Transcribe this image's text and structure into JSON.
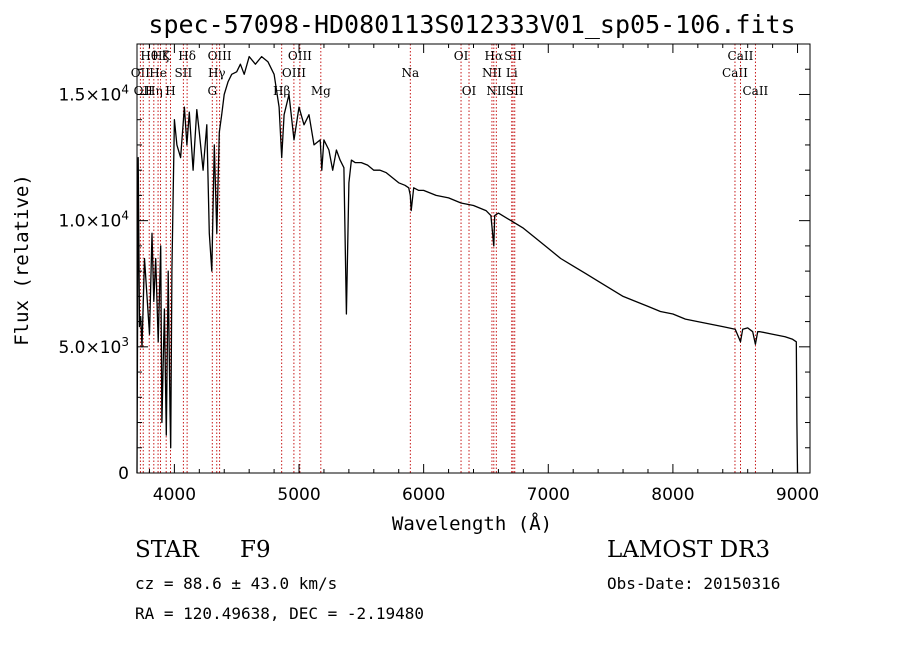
{
  "chart_data": {
    "type": "line",
    "title": "spec-57098-HD080113S012333V01_sp05-106.fits",
    "xlabel": "Wavelength (Å)",
    "ylabel": "Flux (relative)",
    "xlim": [
      3700,
      9100
    ],
    "ylim": [
      0,
      17000
    ],
    "x_ticks": [
      4000,
      5000,
      6000,
      7000,
      8000,
      9000
    ],
    "x_tick_labels": [
      "4000",
      "5000",
      "6000",
      "7000",
      "8000",
      "9000"
    ],
    "y_ticks": [
      0,
      5000,
      10000,
      15000
    ],
    "y_tick_labels": [
      "0",
      "5.0×10",
      "1.0×10",
      "1.5×10"
    ],
    "y_tick_exponents": [
      "",
      "3",
      "4",
      "4"
    ],
    "series": [
      {
        "name": "flux",
        "x": [
          3700,
          3710,
          3720,
          3730,
          3740,
          3760,
          3780,
          3800,
          3820,
          3835,
          3850,
          3870,
          3890,
          3900,
          3920,
          3935,
          3950,
          3965,
          3970,
          3980,
          4000,
          4020,
          4050,
          4080,
          4100,
          4120,
          4150,
          4180,
          4200,
          4230,
          4260,
          4280,
          4300,
          4320,
          4340,
          4360,
          4380,
          4400,
          4430,
          4460,
          4500,
          4530,
          4560,
          4600,
          4650,
          4700,
          4750,
          4800,
          4840,
          4861,
          4880,
          4920,
          4960,
          5000,
          5040,
          5080,
          5120,
          5170,
          5183,
          5200,
          5240,
          5270,
          5300,
          5330,
          5360,
          5380,
          5400,
          5420,
          5450,
          5500,
          5550,
          5600,
          5650,
          5700,
          5750,
          5800,
          5850,
          5880,
          5893,
          5900,
          5920,
          5960,
          6000,
          6100,
          6200,
          6300,
          6400,
          6500,
          6540,
          6563,
          6570,
          6600,
          6700,
          6800,
          6900,
          7000,
          7100,
          7200,
          7300,
          7400,
          7500,
          7600,
          7700,
          7800,
          7900,
          8000,
          8100,
          8200,
          8300,
          8400,
          8500,
          8542,
          8560,
          8600,
          8640,
          8662,
          8680,
          8700,
          8800,
          8900,
          8960,
          8990,
          8995,
          9000
        ],
        "values": [
          0,
          12500,
          5800,
          6200,
          5000,
          8500,
          7000,
          5500,
          9500,
          6800,
          8500,
          5200,
          9000,
          2000,
          6500,
          1500,
          8000,
          2500,
          1000,
          8000,
          14000,
          13000,
          12500,
          14500,
          13000,
          14300,
          12000,
          14400,
          13500,
          12000,
          13800,
          9500,
          8000,
          13000,
          9500,
          13500,
          14200,
          15000,
          15500,
          15800,
          15900,
          16200,
          15800,
          16500,
          16200,
          16500,
          16300,
          15800,
          14500,
          12500,
          14200,
          15000,
          13200,
          14500,
          13800,
          14200,
          13000,
          13200,
          12000,
          13200,
          12800,
          12000,
          12800,
          12400,
          12100,
          6300,
          11500,
          12400,
          12300,
          12300,
          12200,
          12000,
          12000,
          11900,
          11700,
          11500,
          11400,
          11300,
          11000,
          10400,
          11300,
          11200,
          11200,
          11000,
          10900,
          10700,
          10600,
          10400,
          10200,
          9000,
          10200,
          10300,
          10000,
          9700,
          9300,
          8900,
          8500,
          8200,
          7900,
          7600,
          7300,
          7000,
          6800,
          6600,
          6400,
          6300,
          6100,
          6000,
          5900,
          5800,
          5700,
          5200,
          5700,
          5750,
          5600,
          5100,
          5600,
          5600,
          5500,
          5400,
          5300,
          5200,
          2000,
          0
        ]
      }
    ],
    "spectral_lines": [
      {
        "wl": 3727,
        "label": "OII",
        "row": 2
      },
      {
        "wl": 3750,
        "label": "OII",
        "row": 3
      },
      {
        "wl": 3798,
        "label": "Hθ",
        "row": 1
      },
      {
        "wl": 3835,
        "label": "Hη",
        "row": 3
      },
      {
        "wl": 3869,
        "label": "He",
        "row": 2
      },
      {
        "wl": 3889,
        "label": "Hζ",
        "row": 1
      },
      {
        "wl": 3934,
        "label": "K",
        "row": 1
      },
      {
        "wl": 3969,
        "label": "H",
        "row": 3
      },
      {
        "wl": 4072,
        "label": "SII",
        "row": 2
      },
      {
        "wl": 4102,
        "label": "Hδ",
        "row": 1
      },
      {
        "wl": 4304,
        "label": "G",
        "row": 3
      },
      {
        "wl": 4340,
        "label": "Hγ",
        "row": 2
      },
      {
        "wl": 4363,
        "label": "OIII",
        "row": 1
      },
      {
        "wl": 4861,
        "label": "Hβ",
        "row": 3
      },
      {
        "wl": 4959,
        "label": "OIII",
        "row": 2
      },
      {
        "wl": 5007,
        "label": "OIII",
        "row": 1
      },
      {
        "wl": 5175,
        "label": "Mg",
        "row": 3
      },
      {
        "wl": 5893,
        "label": "Na",
        "row": 2
      },
      {
        "wl": 6300,
        "label": "OI",
        "row": 1
      },
      {
        "wl": 6364,
        "label": "OI",
        "row": 3
      },
      {
        "wl": 6548,
        "label": "NII",
        "row": 2
      },
      {
        "wl": 6563,
        "label": "Hα",
        "row": 1
      },
      {
        "wl": 6583,
        "label": "NII",
        "row": 3
      },
      {
        "wl": 6707,
        "label": "Li",
        "row": 2
      },
      {
        "wl": 6717,
        "label": "SII",
        "row": 1
      },
      {
        "wl": 6731,
        "label": "SII",
        "row": 3
      },
      {
        "wl": 8498,
        "label": "CaII",
        "row": 2
      },
      {
        "wl": 8542,
        "label": "CaII",
        "row": 1
      },
      {
        "wl": 8662,
        "label": "CaII",
        "row": 3
      }
    ],
    "line_color": "#c00000",
    "grid": false
  },
  "info": {
    "object_class": "STAR",
    "subclass": "F9",
    "survey": "LAMOST DR3",
    "redshift": "cz = 88.6 ± 43.0 km/s",
    "obs_date": "Obs-Date: 20150316",
    "coords": "RA = 120.49638, DEC =  -2.19480"
  }
}
